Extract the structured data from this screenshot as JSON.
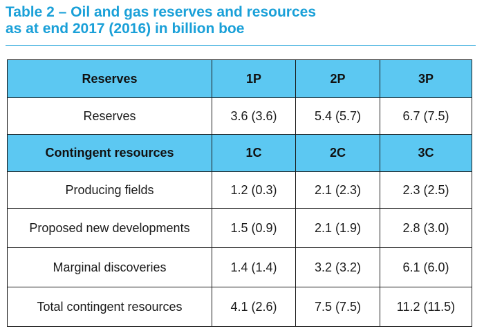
{
  "title": {
    "line1": "Table 2 – Oil and gas reserves and resources",
    "line2": "as at end 2017 (2016) in billion boe"
  },
  "table": {
    "header": {
      "label": "Reserves",
      "cols": [
        "1P",
        "2P",
        "3P"
      ]
    },
    "reserves_row": {
      "label": "Reserves",
      "values": [
        "3.6 (3.6)",
        "5.4 (5.7)",
        "6.7 (7.5)"
      ]
    },
    "contingent_header": {
      "label": "Contingent resources",
      "cols": [
        "1C",
        "2C",
        "3C"
      ]
    },
    "rows": [
      {
        "label": "Producing fields",
        "values": [
          "1.2 (0.3)",
          "2.1 (2.3)",
          "2.3 (2.5)"
        ]
      },
      {
        "label": "Proposed new developments",
        "values": [
          "1.5 (0.9)",
          "2.1 (1.9)",
          "2.8 (3.0)"
        ]
      },
      {
        "label": "Marginal discoveries",
        "values": [
          "1.4 (1.4)",
          "3.2 (3.2)",
          "6.1 (6.0)"
        ]
      },
      {
        "label": "Total contingent resources",
        "values": [
          "4.1 (2.6)",
          "7.5 (7.5)",
          "11.2 (11.5)"
        ]
      }
    ]
  },
  "colors": {
    "title": "#1aa0d8",
    "header_fill": "#5cc8f2",
    "border": "#1a1a1a"
  }
}
